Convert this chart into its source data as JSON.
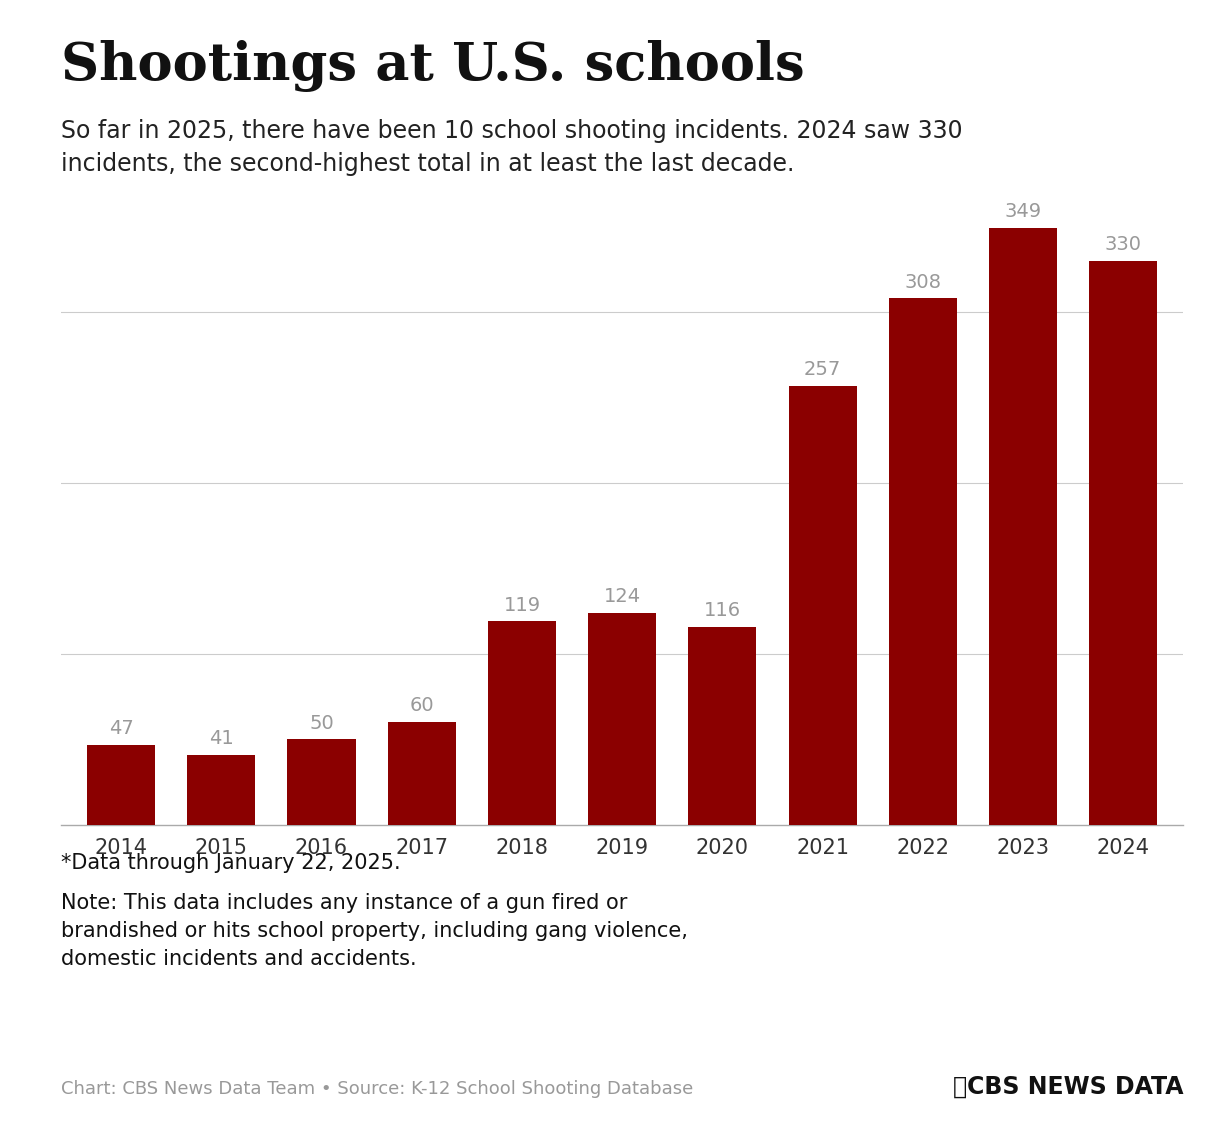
{
  "title": "Shootings at U.S. schools",
  "subtitle": "So far in 2025, there have been 10 school shooting incidents. 2024 saw 330\nincidents, the second-highest total in at least the last decade.",
  "years": [
    "2014",
    "2015",
    "2016",
    "2017",
    "2018",
    "2019",
    "2020",
    "2021",
    "2022",
    "2023",
    "2024"
  ],
  "values": [
    47,
    41,
    50,
    60,
    119,
    124,
    116,
    257,
    308,
    349,
    330
  ],
  "bar_color": "#8B0000",
  "label_color": "#999999",
  "background_color": "#FFFFFF",
  "ylim": [
    0,
    390
  ],
  "grid_color": "#CCCCCC",
  "footnote_line1": "*Data through January 22, 2025.",
  "footnote_line2": "Note: This data includes any instance of a gun fired or\nbrandished or hits school property, including gang violence,\ndomestic incidents and accidents.",
  "source_text": "Chart: CBS News Data Team • Source: K-12 School Shooting Database",
  "title_fontsize": 38,
  "subtitle_fontsize": 17,
  "label_fontsize": 14,
  "tick_fontsize": 15,
  "footnote_fontsize": 15,
  "source_fontsize": 13
}
